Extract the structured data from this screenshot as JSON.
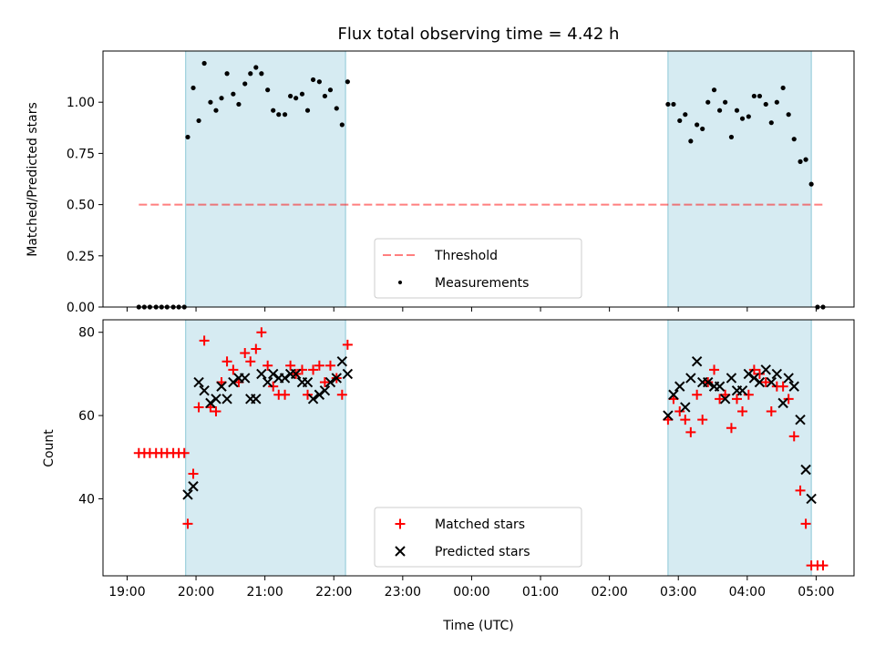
{
  "chart_data": {
    "type": "scatter",
    "title": "Flux total observing time = 4.42 h",
    "xlabel": "Time (UTC)",
    "x_ticks": [
      "19:00",
      "20:00",
      "21:00",
      "22:00",
      "23:00",
      "00:00",
      "01:00",
      "02:00",
      "03:00",
      "04:00",
      "05:00"
    ],
    "x_range_hours": [
      18.65,
      29.55
    ],
    "shaded_intervals_hours": [
      [
        19.85,
        22.17
      ],
      [
        26.85,
        28.93
      ]
    ],
    "shade_color": "#add8e6",
    "top": {
      "ylabel": "Matched/Predicted stars",
      "ylim": [
        0,
        1.25
      ],
      "y_ticks": [
        "0.00",
        "0.25",
        "0.50",
        "0.75",
        "1.00"
      ],
      "threshold": {
        "name": "Threshold",
        "value": 0.5,
        "x_range": [
          19.17,
          29.1
        ],
        "color": "#ff0000",
        "style": "dashed"
      },
      "legend": {
        "placement": "lower center",
        "entries": [
          "Threshold",
          "Measurements"
        ]
      },
      "series": [
        {
          "name": "Measurements",
          "color": "#000000",
          "marker": "dot",
          "points": [
            [
              19.17,
              0
            ],
            [
              19.25,
              0
            ],
            [
              19.33,
              0
            ],
            [
              19.42,
              0
            ],
            [
              19.5,
              0
            ],
            [
              19.58,
              0
            ],
            [
              19.67,
              0
            ],
            [
              19.75,
              0
            ],
            [
              19.83,
              0
            ],
            [
              19.88,
              0.83
            ],
            [
              19.96,
              1.07
            ],
            [
              20.04,
              0.91
            ],
            [
              20.12,
              1.19
            ],
            [
              20.21,
              1.0
            ],
            [
              20.29,
              0.96
            ],
            [
              20.37,
              1.02
            ],
            [
              20.45,
              1.14
            ],
            [
              20.54,
              1.04
            ],
            [
              20.62,
              0.99
            ],
            [
              20.71,
              1.09
            ],
            [
              20.79,
              1.14
            ],
            [
              20.87,
              1.17
            ],
            [
              20.95,
              1.14
            ],
            [
              21.04,
              1.06
            ],
            [
              21.12,
              0.96
            ],
            [
              21.2,
              0.94
            ],
            [
              21.29,
              0.94
            ],
            [
              21.37,
              1.03
            ],
            [
              21.45,
              1.02
            ],
            [
              21.54,
              1.04
            ],
            [
              21.62,
              0.96
            ],
            [
              21.7,
              1.11
            ],
            [
              21.79,
              1.1
            ],
            [
              21.87,
              1.03
            ],
            [
              21.95,
              1.06
            ],
            [
              22.04,
              0.97
            ],
            [
              22.12,
              0.89
            ],
            [
              22.2,
              1.1
            ],
            [
              26.85,
              0.99
            ],
            [
              26.93,
              0.99
            ],
            [
              27.02,
              0.91
            ],
            [
              27.1,
              0.94
            ],
            [
              27.18,
              0.81
            ],
            [
              27.27,
              0.89
            ],
            [
              27.35,
              0.87
            ],
            [
              27.43,
              1.0
            ],
            [
              27.52,
              1.06
            ],
            [
              27.6,
              0.96
            ],
            [
              27.68,
              1.0
            ],
            [
              27.77,
              0.83
            ],
            [
              27.85,
              0.96
            ],
            [
              27.93,
              0.92
            ],
            [
              28.02,
              0.93
            ],
            [
              28.1,
              1.03
            ],
            [
              28.18,
              1.03
            ],
            [
              28.27,
              0.99
            ],
            [
              28.35,
              0.9
            ],
            [
              28.43,
              1.0
            ],
            [
              28.52,
              1.07
            ],
            [
              28.6,
              0.94
            ],
            [
              28.68,
              0.82
            ],
            [
              28.77,
              0.71
            ],
            [
              28.85,
              0.72
            ],
            [
              28.93,
              0.6
            ],
            [
              29.02,
              0
            ],
            [
              29.1,
              0
            ]
          ]
        }
      ]
    },
    "bottom": {
      "ylabel": "Count",
      "ylim": [
        21.5,
        83
      ],
      "y_ticks": [
        "40",
        "60",
        "80"
      ],
      "legend": {
        "placement": "lower center",
        "entries": [
          "Matched stars",
          "Predicted stars"
        ]
      },
      "series": [
        {
          "name": "Matched stars",
          "color": "#ff0000",
          "marker": "plus",
          "points": [
            [
              19.17,
              51
            ],
            [
              19.25,
              51
            ],
            [
              19.33,
              51
            ],
            [
              19.42,
              51
            ],
            [
              19.5,
              51
            ],
            [
              19.58,
              51
            ],
            [
              19.67,
              51
            ],
            [
              19.75,
              51
            ],
            [
              19.83,
              51
            ],
            [
              19.88,
              34
            ],
            [
              19.96,
              46
            ],
            [
              20.04,
              62
            ],
            [
              20.12,
              78
            ],
            [
              20.21,
              62
            ],
            [
              20.29,
              61
            ],
            [
              20.37,
              68
            ],
            [
              20.45,
              73
            ],
            [
              20.54,
              71
            ],
            [
              20.62,
              68
            ],
            [
              20.71,
              75
            ],
            [
              20.79,
              73
            ],
            [
              20.87,
              76
            ],
            [
              20.95,
              80
            ],
            [
              21.04,
              72
            ],
            [
              21.12,
              67
            ],
            [
              21.2,
              65
            ],
            [
              21.29,
              65
            ],
            [
              21.37,
              72
            ],
            [
              21.45,
              70
            ],
            [
              21.54,
              71
            ],
            [
              21.62,
              65
            ],
            [
              21.7,
              71
            ],
            [
              21.79,
              72
            ],
            [
              21.87,
              68
            ],
            [
              21.95,
              72
            ],
            [
              22.04,
              69
            ],
            [
              22.12,
              65
            ],
            [
              22.2,
              77
            ],
            [
              26.85,
              59
            ],
            [
              26.93,
              64
            ],
            [
              27.02,
              61
            ],
            [
              27.1,
              59
            ],
            [
              27.18,
              56
            ],
            [
              27.27,
              65
            ],
            [
              27.35,
              59
            ],
            [
              27.43,
              68
            ],
            [
              27.52,
              71
            ],
            [
              27.6,
              64
            ],
            [
              27.68,
              65
            ],
            [
              27.77,
              57
            ],
            [
              27.85,
              64
            ],
            [
              27.93,
              61
            ],
            [
              28.02,
              65
            ],
            [
              28.1,
              71
            ],
            [
              28.18,
              70
            ],
            [
              28.27,
              68
            ],
            [
              28.35,
              61
            ],
            [
              28.43,
              67
            ],
            [
              28.52,
              67
            ],
            [
              28.6,
              64
            ],
            [
              28.68,
              55
            ],
            [
              28.77,
              42
            ],
            [
              28.85,
              34
            ],
            [
              28.93,
              24
            ],
            [
              29.02,
              24
            ],
            [
              29.1,
              24
            ]
          ]
        },
        {
          "name": "Predicted stars",
          "color": "#000000",
          "marker": "cross",
          "points": [
            [
              19.88,
              41
            ],
            [
              19.96,
              43
            ],
            [
              20.04,
              68
            ],
            [
              20.12,
              66
            ],
            [
              20.21,
              63
            ],
            [
              20.29,
              64
            ],
            [
              20.37,
              67
            ],
            [
              20.45,
              64
            ],
            [
              20.54,
              68
            ],
            [
              20.62,
              69
            ],
            [
              20.71,
              69
            ],
            [
              20.79,
              64
            ],
            [
              20.87,
              64
            ],
            [
              20.95,
              70
            ],
            [
              21.04,
              68
            ],
            [
              21.12,
              70
            ],
            [
              21.2,
              69
            ],
            [
              21.29,
              69
            ],
            [
              21.37,
              70
            ],
            [
              21.45,
              70
            ],
            [
              21.54,
              68
            ],
            [
              21.62,
              68
            ],
            [
              21.7,
              64
            ],
            [
              21.79,
              65
            ],
            [
              21.87,
              66
            ],
            [
              21.95,
              68
            ],
            [
              22.04,
              69
            ],
            [
              22.12,
              73
            ],
            [
              22.2,
              70
            ],
            [
              26.85,
              60
            ],
            [
              26.93,
              65
            ],
            [
              27.02,
              67
            ],
            [
              27.1,
              62
            ],
            [
              27.18,
              69
            ],
            [
              27.27,
              73
            ],
            [
              27.35,
              68
            ],
            [
              27.43,
              68
            ],
            [
              27.52,
              67
            ],
            [
              27.6,
              67
            ],
            [
              27.68,
              64
            ],
            [
              27.77,
              69
            ],
            [
              27.85,
              66
            ],
            [
              27.93,
              66
            ],
            [
              28.02,
              70
            ],
            [
              28.1,
              69
            ],
            [
              28.18,
              68
            ],
            [
              28.27,
              71
            ],
            [
              28.35,
              68
            ],
            [
              28.43,
              70
            ],
            [
              28.52,
              63
            ],
            [
              28.6,
              69
            ],
            [
              28.68,
              67
            ],
            [
              28.77,
              59
            ],
            [
              28.85,
              47
            ],
            [
              28.93,
              40
            ]
          ]
        }
      ]
    }
  }
}
